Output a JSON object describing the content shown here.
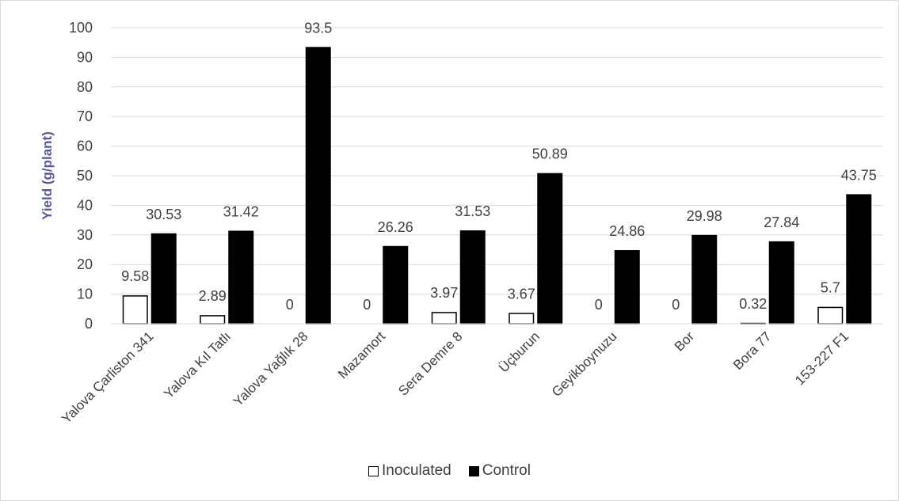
{
  "chart_data": {
    "type": "bar",
    "ylabel": "Yield (g/plant)",
    "xlabel": "",
    "ylim": [
      0,
      100
    ],
    "yticks": [
      0,
      10,
      20,
      30,
      40,
      50,
      60,
      70,
      80,
      90,
      100
    ],
    "grid": true,
    "legend_position": "bottom",
    "categories": [
      "Yalova Çarliston 341",
      "Yalova Kıl Tatlı",
      "Yalova Yağlık 28",
      "Mazamort",
      "Sera Demre 8",
      "Üçburun",
      "Geyikboynuzu",
      "Bor",
      "Bora 77",
      "153-227 F1"
    ],
    "series": [
      {
        "name": "Inoculated",
        "fill": "#ffffff",
        "stroke": "#000000",
        "values": [
          9.58,
          2.89,
          0,
          0,
          3.97,
          3.67,
          0,
          0,
          0.32,
          5.7
        ],
        "labels": [
          "9.58",
          "2.89",
          "0",
          "0",
          "3.97",
          "3.67",
          "0",
          "0",
          "0.32",
          "5.7"
        ]
      },
      {
        "name": "Control",
        "fill": "#000000",
        "stroke": "#000000",
        "values": [
          30.53,
          31.42,
          93.5,
          26.26,
          31.53,
          50.89,
          24.86,
          29.98,
          27.84,
          43.75
        ],
        "labels": [
          "30.53",
          "31.42",
          "93.5",
          "26.26",
          "31.53",
          "50.89",
          "24.86",
          "29.98",
          "27.84",
          "43.75"
        ]
      }
    ]
  }
}
